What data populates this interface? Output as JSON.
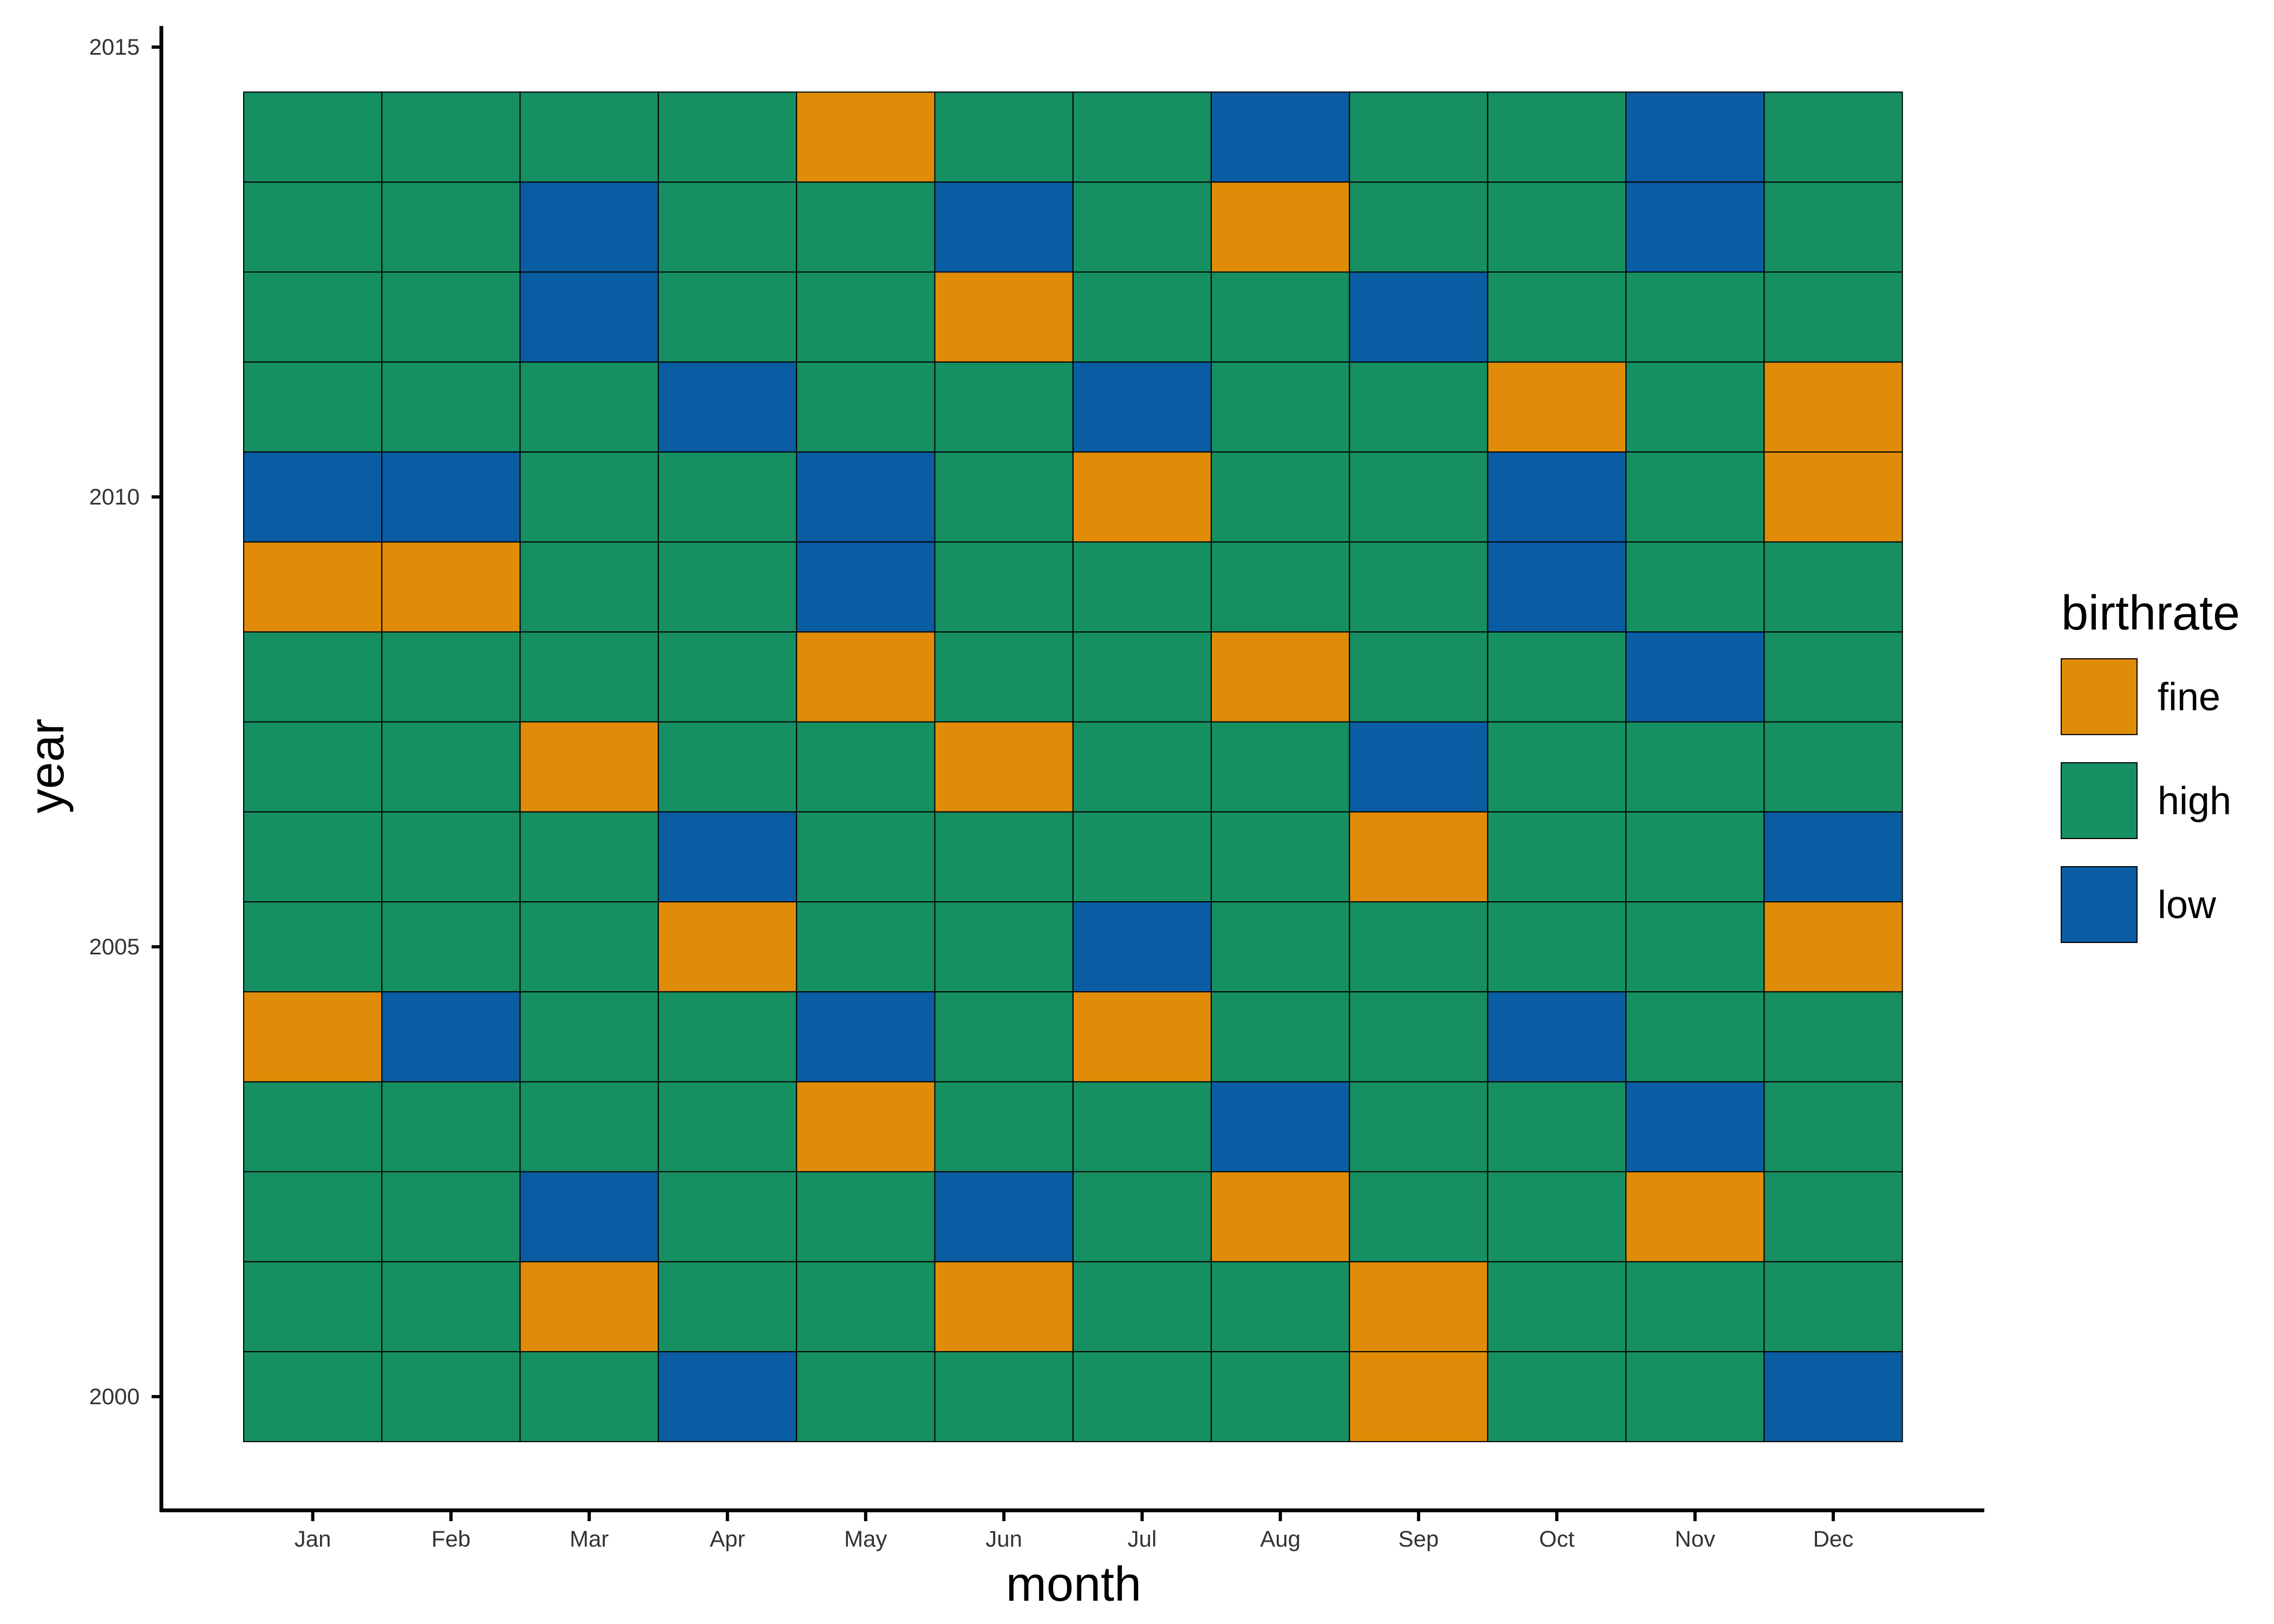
{
  "chart_data": {
    "type": "heatmap",
    "title": "",
    "xlabel": "month",
    "ylabel": "year",
    "x_categories": [
      "Jan",
      "Feb",
      "Mar",
      "Apr",
      "May",
      "Jun",
      "Jul",
      "Aug",
      "Sep",
      "Oct",
      "Nov",
      "Dec"
    ],
    "years": [
      2000,
      2001,
      2002,
      2003,
      2004,
      2005,
      2006,
      2007,
      2008,
      2009,
      2010,
      2011,
      2012,
      2013,
      2014
    ],
    "y_ticks": [
      2000,
      2005,
      2010,
      2015
    ],
    "y_tick_labels": [
      "2000",
      "2005",
      "2010",
      "2015"
    ],
    "ylim": [
      1998.5,
      2015.2
    ],
    "grid": false,
    "legend": {
      "title": "birthrate",
      "position": "right",
      "entries": [
        {
          "label": "fine",
          "color": "#E08C08"
        },
        {
          "label": "high",
          "color": "#168F62"
        },
        {
          "label": "low",
          "color": "#0A5DA3"
        }
      ]
    },
    "values": [
      [
        "high",
        "high",
        "high",
        "low",
        "high",
        "high",
        "high",
        "high",
        "fine",
        "high",
        "high",
        "low"
      ],
      [
        "high",
        "high",
        "fine",
        "high",
        "high",
        "fine",
        "high",
        "high",
        "fine",
        "high",
        "high",
        "high"
      ],
      [
        "high",
        "high",
        "low",
        "high",
        "high",
        "low",
        "high",
        "fine",
        "high",
        "high",
        "fine",
        "high"
      ],
      [
        "high",
        "high",
        "high",
        "high",
        "fine",
        "high",
        "high",
        "low",
        "high",
        "high",
        "low",
        "high"
      ],
      [
        "fine",
        "low",
        "high",
        "high",
        "low",
        "high",
        "fine",
        "high",
        "high",
        "low",
        "high",
        "high"
      ],
      [
        "high",
        "high",
        "high",
        "fine",
        "high",
        "high",
        "low",
        "high",
        "high",
        "high",
        "high",
        "fine"
      ],
      [
        "high",
        "high",
        "high",
        "low",
        "high",
        "high",
        "high",
        "high",
        "fine",
        "high",
        "high",
        "low"
      ],
      [
        "high",
        "high",
        "fine",
        "high",
        "high",
        "fine",
        "high",
        "high",
        "low",
        "high",
        "high",
        "high"
      ],
      [
        "high",
        "high",
        "high",
        "high",
        "fine",
        "high",
        "high",
        "fine",
        "high",
        "high",
        "low",
        "high"
      ],
      [
        "fine",
        "fine",
        "high",
        "high",
        "low",
        "high",
        "high",
        "high",
        "high",
        "low",
        "high",
        "high"
      ],
      [
        "low",
        "low",
        "high",
        "high",
        "low",
        "high",
        "fine",
        "high",
        "high",
        "low",
        "high",
        "fine"
      ],
      [
        "high",
        "high",
        "high",
        "low",
        "high",
        "high",
        "low",
        "high",
        "high",
        "fine",
        "high",
        "fine"
      ],
      [
        "high",
        "high",
        "low",
        "high",
        "high",
        "fine",
        "high",
        "high",
        "low",
        "high",
        "high",
        "high"
      ],
      [
        "high",
        "high",
        "low",
        "high",
        "high",
        "low",
        "high",
        "fine",
        "high",
        "high",
        "low",
        "high"
      ],
      [
        "high",
        "high",
        "high",
        "high",
        "fine",
        "high",
        "high",
        "low",
        "high",
        "high",
        "low",
        "high"
      ]
    ]
  }
}
